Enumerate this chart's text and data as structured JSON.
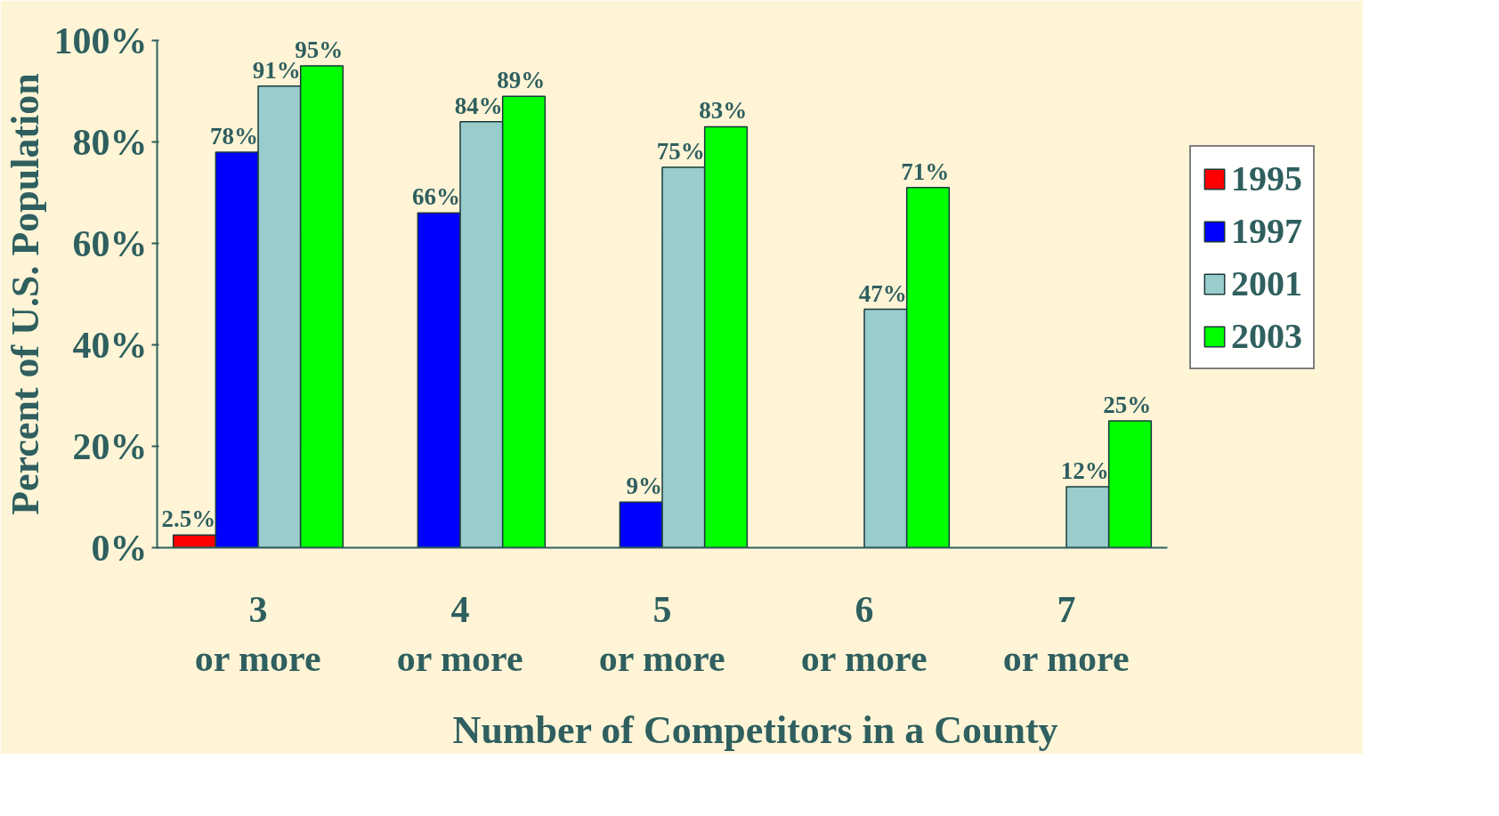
{
  "chart_data": {
    "type": "bar",
    "xlabel": "Number of Competitors in a County",
    "ylabel": "Percent of U.S. Population",
    "categories": [
      "3 or more",
      "4 or more",
      "5 or more",
      "6 or more",
      "7 or more"
    ],
    "series": [
      {
        "name": "1995",
        "color": "#ff0000",
        "values": [
          2.5,
          null,
          null,
          null,
          null
        ],
        "value_labels": [
          "2.5%",
          null,
          null,
          null,
          null
        ]
      },
      {
        "name": "1997",
        "color": "#0000ff",
        "values": [
          78,
          66,
          9,
          null,
          null
        ],
        "value_labels": [
          "78%",
          "66%",
          "9%",
          null,
          null
        ]
      },
      {
        "name": "2001",
        "color": "#99cccc",
        "values": [
          91,
          84,
          75,
          47,
          12
        ],
        "value_labels": [
          "91%",
          "84%",
          "75%",
          "47%",
          "12%"
        ]
      },
      {
        "name": "2003",
        "color": "#00ff00",
        "values": [
          95,
          89,
          83,
          71,
          25
        ],
        "value_labels": [
          "95%",
          "89%",
          "83%",
          "71%",
          "25%"
        ]
      }
    ],
    "ylim": [
      0,
      100
    ],
    "yticks": [
      {
        "value": 0,
        "label": "0%"
      },
      {
        "value": 20,
        "label": "20%"
      },
      {
        "value": 40,
        "label": "40%"
      },
      {
        "value": 60,
        "label": "60%"
      },
      {
        "value": 80,
        "label": "80%"
      },
      {
        "value": 100,
        "label": "100%"
      }
    ],
    "grid": false,
    "legend": "right"
  }
}
